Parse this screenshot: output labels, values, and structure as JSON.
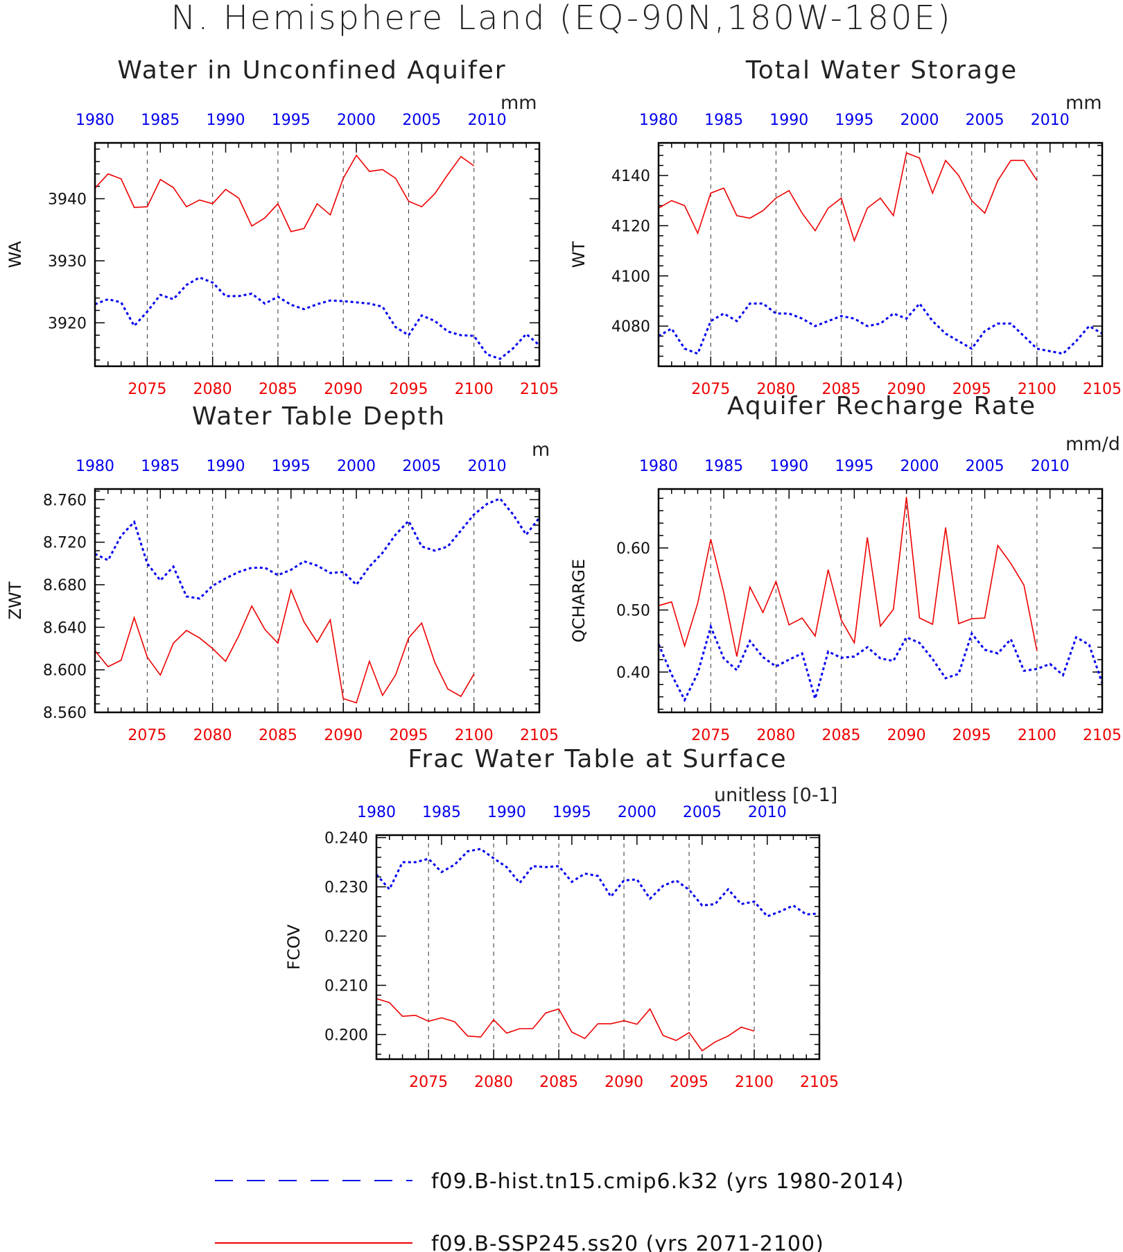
{
  "figure": {
    "title": "N. Hemisphere Land (EQ-90N,180W-180E)"
  },
  "legend": [
    {
      "label": "f09.B-hist.tn15.cmip6.k32 (yrs 1980-2014)",
      "color": "#0000ee",
      "style": "dashed"
    },
    {
      "label": "f09.B-SSP245.ss20 (yrs 2071-2100)",
      "color": "#ee0000",
      "style": "solid"
    }
  ],
  "chart_data": [
    {
      "type": "line",
      "title": "Water in Unconfined Aquifer",
      "units": "mm",
      "ylabel": "WA",
      "ylim": [
        3913,
        3949
      ],
      "yticks": [
        3920,
        3930,
        3940
      ],
      "ytick_labels": [
        "3920",
        "3930",
        "3940"
      ],
      "top_xlim": [
        1980,
        2014
      ],
      "top_ticks": [
        1980,
        1985,
        1990,
        1995,
        2000,
        2005,
        2010
      ],
      "bottom_xlim": [
        2071,
        2105
      ],
      "bottom_ticks": [
        2075,
        2080,
        2085,
        2090,
        2095,
        2100,
        2105
      ],
      "grid": "dashed vertical at bottom-axis ticks",
      "series": [
        {
          "name": "f09.B-hist.tn15.cmip6.k32 (yrs 1980-2014)",
          "axis": "top",
          "color": "#0000ee",
          "style": "dotted",
          "x": [
            1980,
            1981,
            1982,
            1983,
            1984,
            1985,
            1986,
            1987,
            1988,
            1989,
            1990,
            1991,
            1992,
            1993,
            1994,
            1995,
            1996,
            1997,
            1998,
            1999,
            2000,
            2001,
            2002,
            2003,
            2004,
            2005,
            2006,
            2007,
            2008,
            2009,
            2010,
            2011,
            2012,
            2013,
            2014
          ],
          "values": [
            3923.0,
            3923.8,
            3923.3,
            3919.5,
            3921.8,
            3924.5,
            3923.8,
            3926.1,
            3927.3,
            3926.5,
            3924.3,
            3924.3,
            3924.7,
            3923.1,
            3924.2,
            3922.9,
            3922.2,
            3923.0,
            3923.6,
            3923.5,
            3923.3,
            3923.1,
            3922.6,
            3919.3,
            3918.0,
            3921.2,
            3920.3,
            3918.6,
            3918.0,
            3917.9,
            3914.9,
            3914.2,
            3915.9,
            3918.2,
            3916.4
          ]
        },
        {
          "name": "f09.B-SSP245.ss20 (yrs 2071-2100)",
          "axis": "bottom",
          "color": "#ee0000",
          "style": "solid",
          "x": [
            2071,
            2072,
            2073,
            2074,
            2075,
            2076,
            2077,
            2078,
            2079,
            2080,
            2081,
            2082,
            2083,
            2084,
            2085,
            2086,
            2087,
            2088,
            2089,
            2090,
            2091,
            2092,
            2093,
            2094,
            2095,
            2096,
            2097,
            2098,
            2099,
            2100
          ],
          "values": [
            3941.7,
            3944.0,
            3943.2,
            3938.6,
            3938.7,
            3943.1,
            3941.8,
            3938.7,
            3939.8,
            3939.2,
            3941.5,
            3940.1,
            3935.6,
            3936.9,
            3939.2,
            3934.7,
            3935.2,
            3939.2,
            3937.4,
            3943.3,
            3947.0,
            3944.4,
            3944.7,
            3943.3,
            3939.6,
            3938.7,
            3940.8,
            3943.9,
            3946.8,
            3945.3
          ]
        }
      ]
    },
    {
      "type": "line",
      "title": "Total Water Storage",
      "units": "mm",
      "ylabel": "WT",
      "ylim": [
        4064,
        4153
      ],
      "yticks": [
        4080,
        4100,
        4120,
        4140
      ],
      "ytick_labels": [
        "4080",
        "4100",
        "4120",
        "4140"
      ],
      "top_xlim": [
        1980,
        2014
      ],
      "top_ticks": [
        1980,
        1985,
        1990,
        1995,
        2000,
        2005,
        2010
      ],
      "bottom_xlim": [
        2071,
        2105
      ],
      "bottom_ticks": [
        2075,
        2080,
        2085,
        2090,
        2095,
        2100,
        2105
      ],
      "grid": "dashed vertical at bottom-axis ticks",
      "series": [
        {
          "name": "f09.B-hist.tn15.cmip6.k32 (yrs 1980-2014)",
          "axis": "top",
          "color": "#0000ee",
          "style": "dotted",
          "x": [
            1980,
            1981,
            1982,
            1983,
            1984,
            1985,
            1986,
            1987,
            1988,
            1989,
            1990,
            1991,
            1992,
            1993,
            1994,
            1995,
            1996,
            1997,
            1998,
            1999,
            2000,
            2001,
            2002,
            2003,
            2004,
            2005,
            2006,
            2007,
            2008,
            2009,
            2010,
            2011,
            2012,
            2013,
            2014
          ],
          "values": [
            4076,
            4079,
            4071,
            4069,
            4082,
            4085,
            4082,
            4089,
            4089,
            4085,
            4085,
            4083,
            4080,
            4082,
            4084,
            4083,
            4080,
            4081,
            4085,
            4083,
            4089,
            4082,
            4077,
            4074,
            4071,
            4078,
            4081,
            4081,
            4076,
            4071,
            4070,
            4069,
            4074,
            4080,
            4077
          ]
        },
        {
          "name": "f09.B-SSP245.ss20 (yrs 2071-2100)",
          "axis": "bottom",
          "color": "#ee0000",
          "style": "solid",
          "x": [
            2071,
            2072,
            2073,
            2074,
            2075,
            2076,
            2077,
            2078,
            2079,
            2080,
            2081,
            2082,
            2083,
            2084,
            2085,
            2086,
            2087,
            2088,
            2089,
            2090,
            2091,
            2092,
            2093,
            2094,
            2095,
            2096,
            2097,
            2098,
            2099,
            2100
          ],
          "values": [
            4127,
            4130,
            4128,
            4117,
            4133,
            4135,
            4124,
            4123,
            4126,
            4131,
            4134,
            4125,
            4118,
            4127,
            4131,
            4114,
            4127,
            4131,
            4124,
            4149,
            4147,
            4133,
            4146,
            4140,
            4130,
            4125,
            4138,
            4146,
            4146,
            4138
          ]
        }
      ]
    },
    {
      "type": "line",
      "title": "Water Table Depth",
      "units": "m",
      "ylabel": "ZWT",
      "ylim": [
        8.56,
        8.77
      ],
      "yticks": [
        8.56,
        8.6,
        8.64,
        8.68,
        8.72,
        8.76
      ],
      "ytick_labels": [
        "8.560",
        "8.600",
        "8.640",
        "8.680",
        "8.720",
        "8.760"
      ],
      "top_xlim": [
        1980,
        2014
      ],
      "top_ticks": [
        1980,
        1985,
        1990,
        1995,
        2000,
        2005,
        2010
      ],
      "bottom_xlim": [
        2071,
        2105
      ],
      "bottom_ticks": [
        2075,
        2080,
        2085,
        2090,
        2095,
        2100,
        2105
      ],
      "grid": "dashed vertical at bottom-axis ticks",
      "series": [
        {
          "name": "f09.B-hist.tn15.cmip6.k32 (yrs 1980-2014)",
          "axis": "top",
          "color": "#0000ee",
          "style": "dotted",
          "x": [
            1980,
            1981,
            1982,
            1983,
            1984,
            1985,
            1986,
            1987,
            1988,
            1989,
            1990,
            1991,
            1992,
            1993,
            1994,
            1995,
            1996,
            1997,
            1998,
            1999,
            2000,
            2001,
            2002,
            2003,
            2004,
            2005,
            2006,
            2007,
            2008,
            2009,
            2010,
            2011,
            2012,
            2013,
            2014
          ],
          "values": [
            8.709,
            8.703,
            8.726,
            8.739,
            8.7,
            8.684,
            8.697,
            8.669,
            8.667,
            8.679,
            8.686,
            8.692,
            8.696,
            8.696,
            8.689,
            8.694,
            8.702,
            8.698,
            8.691,
            8.692,
            8.68,
            8.697,
            8.71,
            8.727,
            8.74,
            8.716,
            8.712,
            8.716,
            8.731,
            8.746,
            8.756,
            8.761,
            8.746,
            8.727,
            8.743
          ]
        },
        {
          "name": "f09.B-SSP245.ss20 (yrs 2071-2100)",
          "axis": "bottom",
          "color": "#ee0000",
          "style": "solid",
          "x": [
            2071,
            2072,
            2073,
            2074,
            2075,
            2076,
            2077,
            2078,
            2079,
            2080,
            2081,
            2082,
            2083,
            2084,
            2085,
            2086,
            2087,
            2088,
            2089,
            2090,
            2091,
            2092,
            2093,
            2094,
            2095,
            2096,
            2097,
            2098,
            2099,
            2100
          ],
          "values": [
            8.618,
            8.603,
            8.609,
            8.649,
            8.612,
            8.595,
            8.625,
            8.637,
            8.63,
            8.62,
            8.608,
            8.632,
            8.66,
            8.638,
            8.625,
            8.675,
            8.645,
            8.626,
            8.647,
            8.573,
            8.569,
            8.608,
            8.576,
            8.595,
            8.63,
            8.644,
            8.607,
            8.582,
            8.575,
            8.596
          ]
        }
      ]
    },
    {
      "type": "line",
      "title": "Aquifer Recharge Rate",
      "units": "mm/d",
      "ylabel": "QCHARGE",
      "ylim": [
        0.335,
        0.695
      ],
      "yticks": [
        0.4,
        0.5,
        0.6
      ],
      "ytick_labels": [
        "0.40",
        "0.50",
        "0.60"
      ],
      "top_xlim": [
        1980,
        2014
      ],
      "top_ticks": [
        1980,
        1985,
        1990,
        1995,
        2000,
        2005,
        2010
      ],
      "bottom_xlim": [
        2071,
        2105
      ],
      "bottom_ticks": [
        2075,
        2080,
        2085,
        2090,
        2095,
        2100,
        2105
      ],
      "grid": "dashed vertical at bottom-axis ticks",
      "series": [
        {
          "name": "f09.B-hist.tn15.cmip6.k32 (yrs 1980-2014)",
          "axis": "top",
          "color": "#0000ee",
          "style": "dotted",
          "x": [
            1980,
            1981,
            1982,
            1983,
            1984,
            1985,
            1986,
            1987,
            1988,
            1989,
            1990,
            1991,
            1992,
            1993,
            1994,
            1995,
            1996,
            1997,
            1998,
            1999,
            2000,
            2001,
            2002,
            2003,
            2004,
            2005,
            2006,
            2007,
            2008,
            2009,
            2010,
            2011,
            2012,
            2013,
            2014
          ],
          "values": [
            0.445,
            0.396,
            0.355,
            0.398,
            0.473,
            0.422,
            0.403,
            0.45,
            0.424,
            0.409,
            0.42,
            0.43,
            0.357,
            0.433,
            0.423,
            0.425,
            0.44,
            0.422,
            0.418,
            0.456,
            0.447,
            0.421,
            0.39,
            0.397,
            0.462,
            0.436,
            0.43,
            0.453,
            0.402,
            0.405,
            0.413,
            0.395,
            0.456,
            0.444,
            0.382
          ]
        },
        {
          "name": "f09.B-SSP245.ss20 (yrs 2071-2100)",
          "axis": "bottom",
          "color": "#ee0000",
          "style": "solid",
          "x": [
            2071,
            2072,
            2073,
            2074,
            2075,
            2076,
            2077,
            2078,
            2079,
            2080,
            2081,
            2082,
            2083,
            2084,
            2085,
            2086,
            2087,
            2088,
            2089,
            2090,
            2091,
            2092,
            2093,
            2094,
            2095,
            2096,
            2097,
            2098,
            2099,
            2100
          ],
          "values": [
            0.507,
            0.513,
            0.442,
            0.511,
            0.614,
            0.528,
            0.425,
            0.537,
            0.496,
            0.546,
            0.476,
            0.487,
            0.458,
            0.565,
            0.484,
            0.447,
            0.617,
            0.474,
            0.501,
            0.682,
            0.487,
            0.477,
            0.633,
            0.478,
            0.486,
            0.487,
            0.604,
            0.575,
            0.54,
            0.434
          ]
        }
      ]
    },
    {
      "type": "line",
      "title": "Frac Water Table at Surface",
      "units": "unitless [0-1]",
      "ylabel": "FCOV",
      "ylim": [
        0.195,
        0.2405
      ],
      "yticks": [
        0.2,
        0.21,
        0.22,
        0.23,
        0.24
      ],
      "ytick_labels": [
        "0.200",
        "0.210",
        "0.220",
        "0.230",
        "0.240"
      ],
      "top_xlim": [
        1980,
        2014
      ],
      "top_ticks": [
        1980,
        1985,
        1990,
        1995,
        2000,
        2005,
        2010
      ],
      "bottom_xlim": [
        2071,
        2105
      ],
      "bottom_ticks": [
        2075,
        2080,
        2085,
        2090,
        2095,
        2100,
        2105
      ],
      "grid": "dashed vertical at bottom-axis ticks",
      "series": [
        {
          "name": "f09.B-hist.tn15.cmip6.k32 (yrs 1980-2014)",
          "axis": "top",
          "color": "#0000ee",
          "style": "dotted",
          "x": [
            1980,
            1981,
            1982,
            1983,
            1984,
            1985,
            1986,
            1987,
            1988,
            1989,
            1990,
            1991,
            1992,
            1993,
            1994,
            1995,
            1996,
            1997,
            1998,
            1999,
            2000,
            2001,
            2002,
            2003,
            2004,
            2005,
            2006,
            2007,
            2008,
            2009,
            2010,
            2011,
            2012,
            2013,
            2014
          ],
          "values": [
            0.2325,
            0.2295,
            0.235,
            0.235,
            0.2357,
            0.233,
            0.2345,
            0.2372,
            0.2377,
            0.2358,
            0.234,
            0.2308,
            0.2342,
            0.234,
            0.2342,
            0.231,
            0.2327,
            0.2322,
            0.228,
            0.2313,
            0.2315,
            0.2276,
            0.2302,
            0.2313,
            0.2294,
            0.2262,
            0.2265,
            0.2295,
            0.2265,
            0.227,
            0.224,
            0.225,
            0.2262,
            0.2244,
            0.2246
          ]
        },
        {
          "name": "f09.B-SSP245.ss20 (yrs 2071-2100)",
          "axis": "bottom",
          "color": "#ee0000",
          "style": "solid",
          "x": [
            2071,
            2072,
            2073,
            2074,
            2075,
            2076,
            2077,
            2078,
            2079,
            2080,
            2081,
            2082,
            2083,
            2084,
            2085,
            2086,
            2087,
            2088,
            2089,
            2090,
            2091,
            2092,
            2093,
            2094,
            2095,
            2096,
            2097,
            2098,
            2099,
            2100
          ],
          "values": [
            0.2073,
            0.2065,
            0.2037,
            0.2039,
            0.2027,
            0.2034,
            0.2026,
            0.1997,
            0.1995,
            0.203,
            0.2003,
            0.2012,
            0.2012,
            0.2044,
            0.2052,
            0.2005,
            0.1992,
            0.2022,
            0.2022,
            0.2028,
            0.2021,
            0.2052,
            0.1998,
            0.1988,
            0.2004,
            0.1967,
            0.1985,
            0.1997,
            0.2015,
            0.2007
          ]
        }
      ]
    }
  ]
}
